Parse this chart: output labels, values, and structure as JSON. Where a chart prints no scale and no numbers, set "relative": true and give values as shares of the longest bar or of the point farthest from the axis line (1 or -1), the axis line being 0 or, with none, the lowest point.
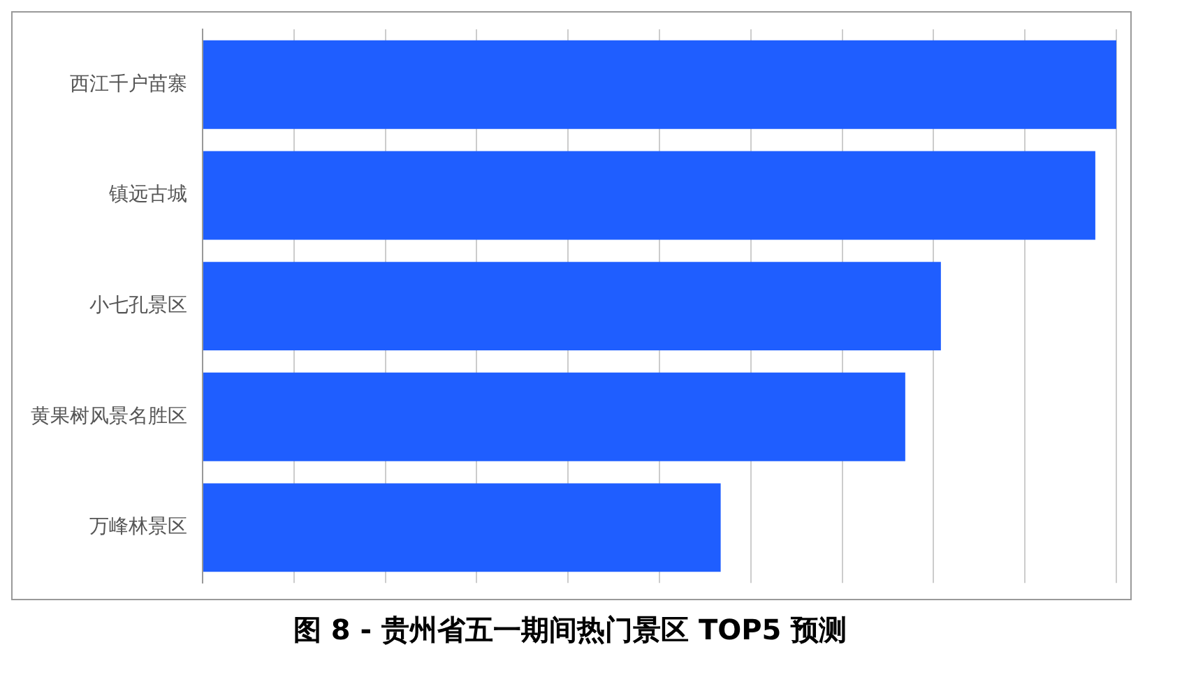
{
  "chart_data": {
    "type": "bar",
    "orientation": "horizontal",
    "relative": true,
    "title": "图 8 - 贵州省五一期间热门景区 TOP5 预测",
    "categories": [
      "西江千户苗寨",
      "镇远古城",
      "小七孔景区",
      "黄果树风景名胜区",
      "万峰林景区"
    ],
    "values": [
      1,
      0.977,
      0.808,
      0.769,
      0.567
    ],
    "color": "#1f5eff",
    "grid": "x"
  }
}
